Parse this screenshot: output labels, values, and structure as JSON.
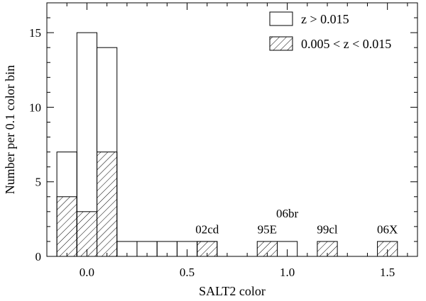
{
  "chart_data": {
    "type": "bar",
    "xlabel": "SALT2 color",
    "ylabel": "Number per 0.1 color bin",
    "xlim": [
      -0.2,
      1.65
    ],
    "ylim": [
      0,
      17
    ],
    "x_ticks": [
      0.0,
      0.5,
      1.0,
      1.5
    ],
    "x_tick_labels": [
      "0.0",
      "0.5",
      "1.0",
      "1.5"
    ],
    "y_ticks": [
      0,
      5,
      10,
      15
    ],
    "y_tick_labels": [
      "0",
      "5",
      "10",
      "15"
    ],
    "bin_width": 0.1,
    "bin_edges": [
      -0.15,
      -0.05,
      0.05,
      0.15,
      0.25,
      0.35,
      0.45,
      0.55,
      0.65,
      0.75,
      0.85,
      0.95,
      1.05,
      1.15,
      1.25,
      1.35,
      1.45,
      1.55
    ],
    "series": [
      {
        "name": "z > 0.015",
        "style": "outline",
        "values": [
          7,
          15,
          14,
          1,
          1,
          1,
          1,
          1,
          0,
          0,
          0,
          1,
          0,
          0,
          0,
          0,
          0
        ]
      },
      {
        "name": "0.005 < z < 0.015",
        "style": "hatched",
        "values": [
          4,
          3,
          7,
          0,
          0,
          0,
          0,
          1,
          0,
          0,
          1,
          0,
          0,
          1,
          0,
          0,
          1
        ]
      }
    ],
    "annotations": [
      {
        "text": "02cd",
        "x": 0.6,
        "y": 1.55
      },
      {
        "text": "95E",
        "x": 0.9,
        "y": 1.55
      },
      {
        "text": "06br",
        "x": 1.0,
        "y": 2.6
      },
      {
        "text": "99cl",
        "x": 1.2,
        "y": 1.55
      },
      {
        "text": "06X",
        "x": 1.5,
        "y": 1.55
      }
    ],
    "legend_placement": "top-right",
    "grid": false,
    "colors": {
      "line": "#000000",
      "background": "#ffffff"
    }
  }
}
